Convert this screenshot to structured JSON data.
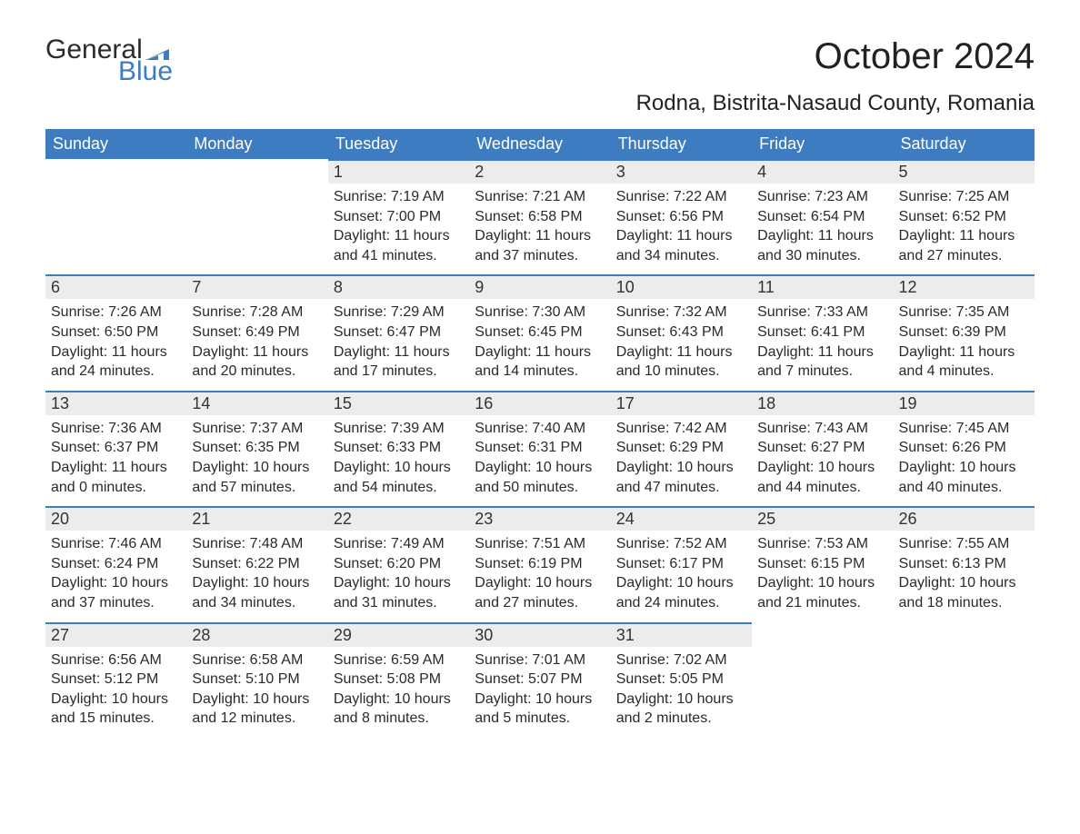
{
  "logo": {
    "text1": "General",
    "text2": "Blue",
    "flag_color": "#3d7cc0"
  },
  "title": "October 2024",
  "subtitle": "Rodna, Bistrita-Nasaud County, Romania",
  "header_bg": "#3d7cc0",
  "header_fg": "#ffffff",
  "daynum_bg": "#ececec",
  "daynum_border": "#3d7cc0",
  "text_color": "#2a2a2a",
  "background": "#ffffff",
  "font_family": "Arial, Helvetica, sans-serif",
  "title_fontsize": 40,
  "subtitle_fontsize": 24,
  "header_fontsize": 18,
  "body_fontsize": 16,
  "columns": [
    "Sunday",
    "Monday",
    "Tuesday",
    "Wednesday",
    "Thursday",
    "Friday",
    "Saturday"
  ],
  "weeks": [
    [
      null,
      null,
      {
        "n": "1",
        "sr": "7:19 AM",
        "ss": "7:00 PM",
        "dl": "11 hours and 41 minutes."
      },
      {
        "n": "2",
        "sr": "7:21 AM",
        "ss": "6:58 PM",
        "dl": "11 hours and 37 minutes."
      },
      {
        "n": "3",
        "sr": "7:22 AM",
        "ss": "6:56 PM",
        "dl": "11 hours and 34 minutes."
      },
      {
        "n": "4",
        "sr": "7:23 AM",
        "ss": "6:54 PM",
        "dl": "11 hours and 30 minutes."
      },
      {
        "n": "5",
        "sr": "7:25 AM",
        "ss": "6:52 PM",
        "dl": "11 hours and 27 minutes."
      }
    ],
    [
      {
        "n": "6",
        "sr": "7:26 AM",
        "ss": "6:50 PM",
        "dl": "11 hours and 24 minutes."
      },
      {
        "n": "7",
        "sr": "7:28 AM",
        "ss": "6:49 PM",
        "dl": "11 hours and 20 minutes."
      },
      {
        "n": "8",
        "sr": "7:29 AM",
        "ss": "6:47 PM",
        "dl": "11 hours and 17 minutes."
      },
      {
        "n": "9",
        "sr": "7:30 AM",
        "ss": "6:45 PM",
        "dl": "11 hours and 14 minutes."
      },
      {
        "n": "10",
        "sr": "7:32 AM",
        "ss": "6:43 PM",
        "dl": "11 hours and 10 minutes."
      },
      {
        "n": "11",
        "sr": "7:33 AM",
        "ss": "6:41 PM",
        "dl": "11 hours and 7 minutes."
      },
      {
        "n": "12",
        "sr": "7:35 AM",
        "ss": "6:39 PM",
        "dl": "11 hours and 4 minutes."
      }
    ],
    [
      {
        "n": "13",
        "sr": "7:36 AM",
        "ss": "6:37 PM",
        "dl": "11 hours and 0 minutes."
      },
      {
        "n": "14",
        "sr": "7:37 AM",
        "ss": "6:35 PM",
        "dl": "10 hours and 57 minutes."
      },
      {
        "n": "15",
        "sr": "7:39 AM",
        "ss": "6:33 PM",
        "dl": "10 hours and 54 minutes."
      },
      {
        "n": "16",
        "sr": "7:40 AM",
        "ss": "6:31 PM",
        "dl": "10 hours and 50 minutes."
      },
      {
        "n": "17",
        "sr": "7:42 AM",
        "ss": "6:29 PM",
        "dl": "10 hours and 47 minutes."
      },
      {
        "n": "18",
        "sr": "7:43 AM",
        "ss": "6:27 PM",
        "dl": "10 hours and 44 minutes."
      },
      {
        "n": "19",
        "sr": "7:45 AM",
        "ss": "6:26 PM",
        "dl": "10 hours and 40 minutes."
      }
    ],
    [
      {
        "n": "20",
        "sr": "7:46 AM",
        "ss": "6:24 PM",
        "dl": "10 hours and 37 minutes."
      },
      {
        "n": "21",
        "sr": "7:48 AM",
        "ss": "6:22 PM",
        "dl": "10 hours and 34 minutes."
      },
      {
        "n": "22",
        "sr": "7:49 AM",
        "ss": "6:20 PM",
        "dl": "10 hours and 31 minutes."
      },
      {
        "n": "23",
        "sr": "7:51 AM",
        "ss": "6:19 PM",
        "dl": "10 hours and 27 minutes."
      },
      {
        "n": "24",
        "sr": "7:52 AM",
        "ss": "6:17 PM",
        "dl": "10 hours and 24 minutes."
      },
      {
        "n": "25",
        "sr": "7:53 AM",
        "ss": "6:15 PM",
        "dl": "10 hours and 21 minutes."
      },
      {
        "n": "26",
        "sr": "7:55 AM",
        "ss": "6:13 PM",
        "dl": "10 hours and 18 minutes."
      }
    ],
    [
      {
        "n": "27",
        "sr": "6:56 AM",
        "ss": "5:12 PM",
        "dl": "10 hours and 15 minutes."
      },
      {
        "n": "28",
        "sr": "6:58 AM",
        "ss": "5:10 PM",
        "dl": "10 hours and 12 minutes."
      },
      {
        "n": "29",
        "sr": "6:59 AM",
        "ss": "5:08 PM",
        "dl": "10 hours and 8 minutes."
      },
      {
        "n": "30",
        "sr": "7:01 AM",
        "ss": "5:07 PM",
        "dl": "10 hours and 5 minutes."
      },
      {
        "n": "31",
        "sr": "7:02 AM",
        "ss": "5:05 PM",
        "dl": "10 hours and 2 minutes."
      },
      null,
      null
    ]
  ],
  "labels": {
    "sunrise": "Sunrise: ",
    "sunset": "Sunset: ",
    "daylight": "Daylight: "
  }
}
